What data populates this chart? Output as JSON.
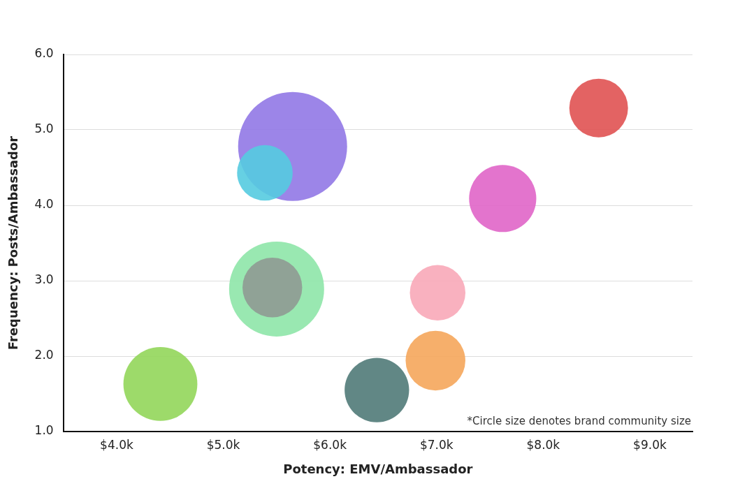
{
  "chart_data": {
    "type": "bubble",
    "xlabel": "Potency: EMV/Ambassador",
    "ylabel": "Frequency: Posts/Ambassador",
    "x": [
      5.65,
      5.39,
      8.52,
      7.62,
      5.5,
      5.46,
      7.01,
      6.99,
      6.44,
      4.41
    ],
    "values": [
      4.78,
      4.43,
      5.29,
      4.09,
      2.89,
      2.91,
      2.84,
      1.94,
      1.55,
      1.63
    ],
    "sizes": [
      1,
      0.26,
      0.29,
      0.38,
      0.76,
      0.3,
      0.26,
      0.3,
      0.35,
      0.46
    ],
    "colors": [
      "#9178e6",
      "#55cbe0",
      "#e05252",
      "#e065c8",
      "#8ee6a8",
      "#8f9a93",
      "#f8a8b8",
      "#f5a65b",
      "#507a78",
      "#92d65a"
    ],
    "xlim": [
      3.5,
      9.4
    ],
    "xticks": [
      {
        "value": 4,
        "label": "$4.0k"
      },
      {
        "value": 5,
        "label": "$5.0k"
      },
      {
        "value": 6,
        "label": "$6.0k"
      },
      {
        "value": 7,
        "label": "$7.0k"
      },
      {
        "value": 8,
        "label": "$8.0k"
      },
      {
        "value": 9,
        "label": "$9.0k"
      }
    ],
    "ylim": [
      1,
      6
    ],
    "yticks": [
      {
        "value": 1,
        "label": "1.0"
      },
      {
        "value": 2,
        "label": "2.0"
      },
      {
        "value": 3,
        "label": "3.0"
      },
      {
        "value": 4,
        "label": "4.0"
      },
      {
        "value": 5,
        "label": "5.0"
      },
      {
        "value": 6,
        "label": "6.0"
      }
    ],
    "grid": "y",
    "legend": false,
    "annotations": [
      "*Circle size denotes brand community size"
    ]
  }
}
